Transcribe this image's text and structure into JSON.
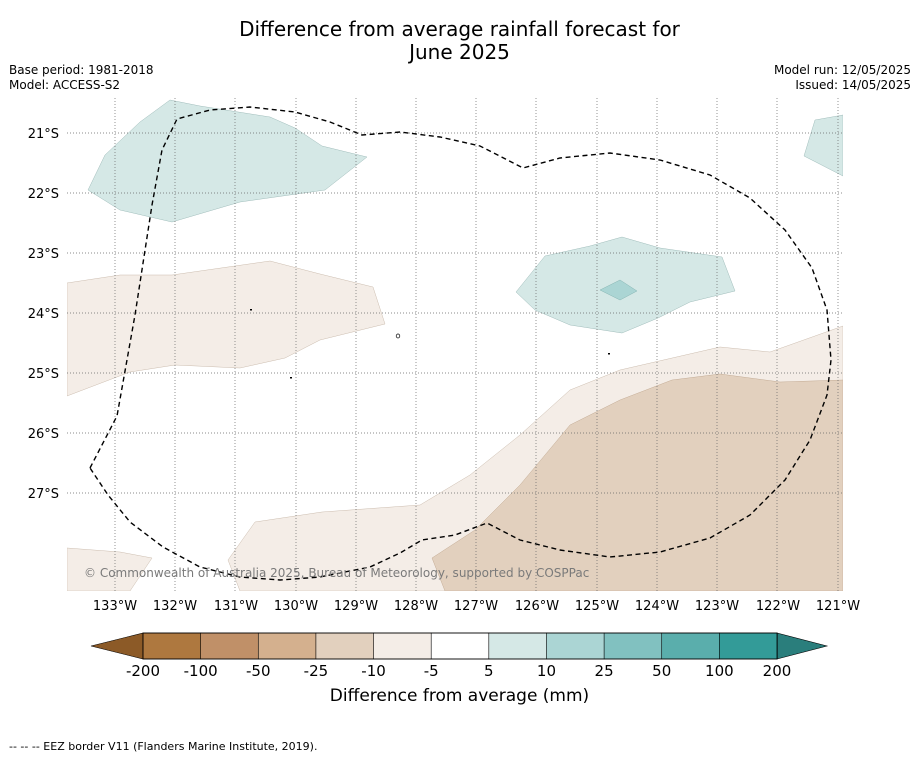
{
  "title_line1": "Difference from average rainfall forecast for",
  "title_line2": "June 2025",
  "meta_left": {
    "base_period": "Base period: 1981-2018",
    "model": "Model: ACCESS-S2"
  },
  "meta_right": {
    "model_run": "Model run: 12/05/2025",
    "issued": "Issued: 14/05/2025"
  },
  "lat_labels": [
    "21°S",
    "22°S",
    "23°S",
    "24°S",
    "25°S",
    "26°S",
    "27°S"
  ],
  "lon_labels": [
    "133°W",
    "132°W",
    "131°W",
    "130°W",
    "129°W",
    "128°W",
    "127°W",
    "126°W",
    "125°W",
    "124°W",
    "123°W",
    "122°W",
    "121°W"
  ],
  "copyright": "© Commonwealth of Australia 2025, Bureau of Meteorology, supported by COSPPac",
  "colorbar": {
    "ticks": [
      "-200",
      "-100",
      "-50",
      "-25",
      "-10",
      "-5",
      "5",
      "10",
      "25",
      "50",
      "100",
      "200"
    ],
    "colors": [
      "#ae783f",
      "#c09068",
      "#d4b08e",
      "#e2d0be",
      "#f4ede7",
      "#ffffff",
      "#d5e8e6",
      "#abd5d4",
      "#81c1c0",
      "#5aaeac",
      "#339b98"
    ],
    "low_extend_color": "#8c5a27",
    "high_extend_color": "#2a7e7c",
    "title": "Difference from average (mm)"
  },
  "legend_footer": "-- -- -- EEZ border V11 (Flanders Marine Institute, 2019)."
}
